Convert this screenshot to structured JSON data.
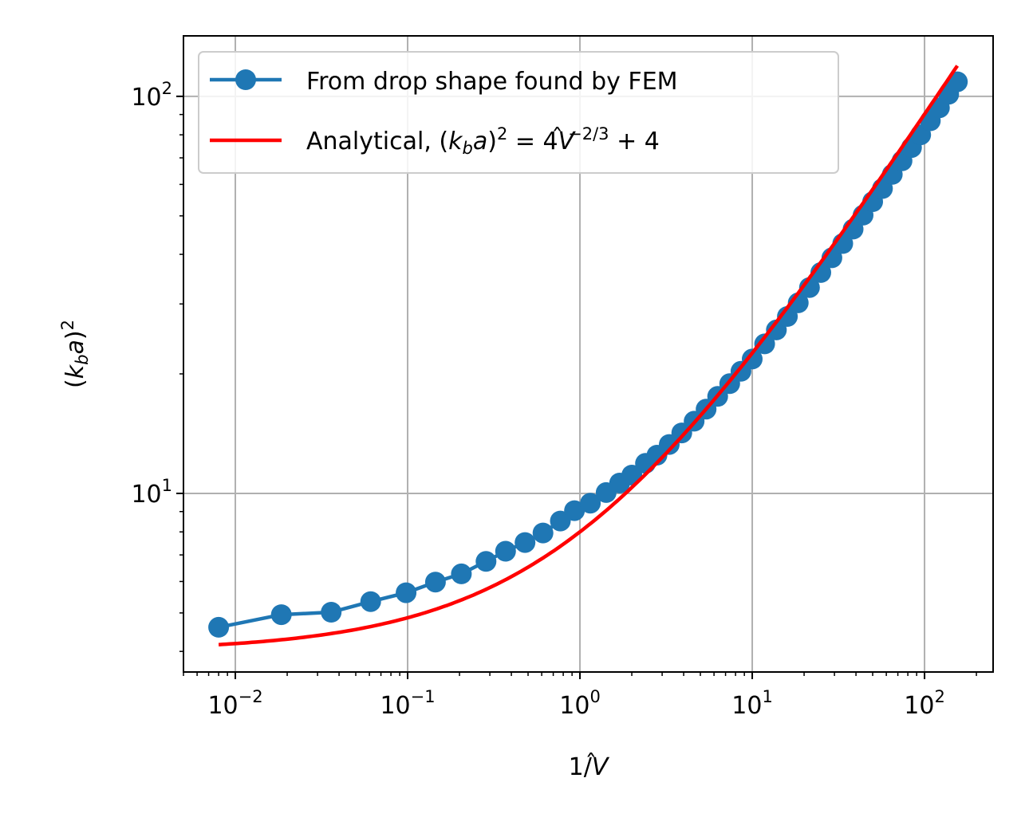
{
  "chart_data": {
    "type": "line",
    "xscale": "log",
    "yscale": "log",
    "xlim": [
      0.005,
      250
    ],
    "ylim": [
      3.55,
      142
    ],
    "grid": true,
    "legend_position": "top-left",
    "xlabel_parts": [
      "1/",
      "V",
      "̂"
    ],
    "ylabel_parts": [
      "(",
      "k",
      "b",
      "a",
      ")",
      "2"
    ],
    "x_ticks": [
      {
        "value": 0.01,
        "base": "10",
        "exp": "−2"
      },
      {
        "value": 0.1,
        "base": "10",
        "exp": "−1"
      },
      {
        "value": 1,
        "base": "10",
        "exp": "0"
      },
      {
        "value": 10,
        "base": "10",
        "exp": "1"
      },
      {
        "value": 100,
        "base": "10",
        "exp": "2"
      }
    ],
    "y_ticks": [
      {
        "value": 10,
        "base": "10",
        "exp": "1"
      },
      {
        "value": 100,
        "base": "10",
        "exp": "2"
      }
    ],
    "series": [
      {
        "name": "From drop shape found by FEM",
        "style": "line-markers",
        "color": "#1f77b4",
        "x": [
          0.008,
          0.0185,
          0.036,
          0.061,
          0.098,
          0.145,
          0.205,
          0.285,
          0.37,
          0.48,
          0.61,
          0.77,
          0.93,
          1.15,
          1.42,
          1.7,
          2.0,
          2.4,
          2.8,
          3.3,
          3.9,
          4.6,
          5.4,
          6.3,
          7.4,
          8.6,
          10,
          11.8,
          13.8,
          16,
          18.5,
          21.5,
          25,
          29,
          33.5,
          38.5,
          44,
          50,
          57,
          65,
          74,
          84,
          95,
          108,
          122,
          138,
          155
        ],
        "y": [
          4.6,
          4.95,
          5.02,
          5.34,
          5.62,
          5.98,
          6.27,
          6.74,
          7.15,
          7.52,
          7.95,
          8.52,
          9.05,
          9.45,
          10.05,
          10.62,
          11.12,
          11.9,
          12.48,
          13.28,
          14.2,
          15.2,
          16.3,
          17.55,
          18.9,
          20.3,
          21.8,
          23.8,
          25.8,
          27.9,
          30.2,
          33.0,
          36.0,
          39.2,
          42.6,
          46.3,
          50.2,
          54.3,
          58.6,
          63.6,
          68.8,
          74.3,
          80.0,
          86.8,
          93.6,
          101.2,
          108.8
        ]
      },
      {
        "name_parts": [
          "Analytical, (",
          "k",
          "b",
          "a",
          ")",
          "2",
          " = 4",
          "V",
          "̂",
          "−2/3",
          " + 4"
        ],
        "style": "line",
        "color": "#ff0000",
        "formula": "(k_b a)^2 = 4 V^(-2/3) + 4",
        "x_range": [
          0.008,
          155
        ]
      }
    ]
  }
}
